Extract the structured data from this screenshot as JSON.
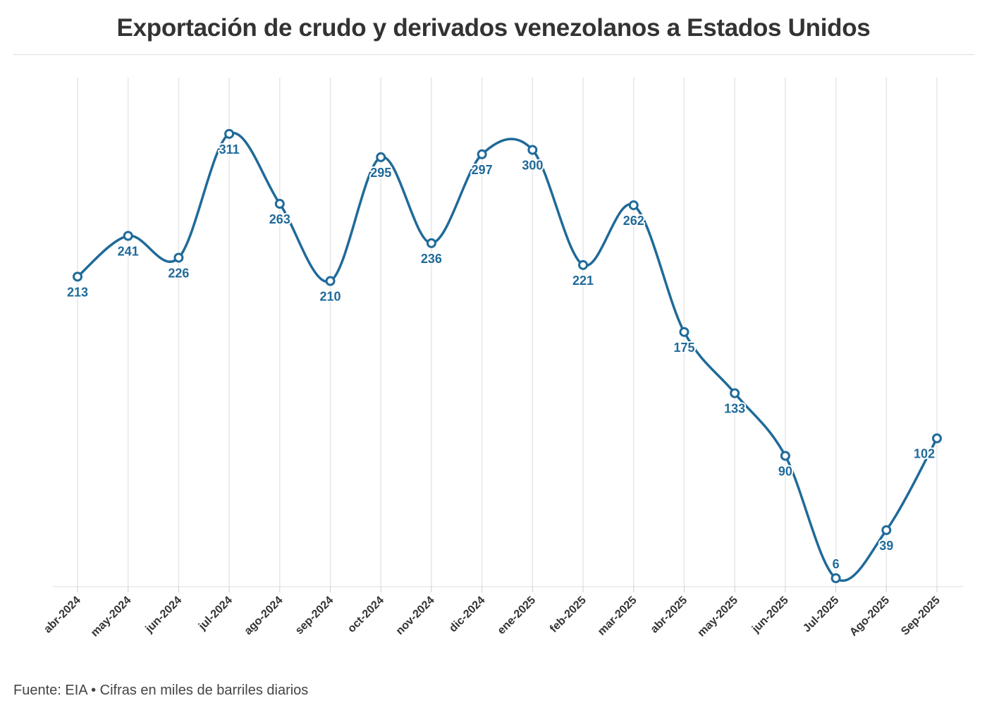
{
  "title": "Exportación de crudo y derivados venezolanos a Estados Unidos",
  "source": "Fuente: EIA • Cifras en miles de barriles diarios",
  "colors": {
    "line": "#1f6a99",
    "grid": "#e6e6e6",
    "axis": "#dddddd"
  },
  "chart_data": {
    "type": "line",
    "title": "Exportación de crudo y derivados venezolanos a Estados Unidos",
    "xlabel": "",
    "ylabel": "",
    "ylim": [
      0,
      311
    ],
    "grid": "vertical",
    "curve": "smooth",
    "categories": [
      "abr-2024",
      "may-2024",
      "jun-2024",
      "jul-2024",
      "ago-2024",
      "sep-2024",
      "oct-2024",
      "nov-2024",
      "dic-2024",
      "ene-2025",
      "feb-2025",
      "mar-2025",
      "abr-2025",
      "may-2025",
      "jun-2025",
      "Jul-2025",
      "Ago-2025",
      "Sep-2025"
    ],
    "values": [
      213,
      241,
      226,
      311,
      263,
      210,
      295,
      236,
      297,
      300,
      221,
      262,
      175,
      133,
      90,
      6,
      39,
      102
    ],
    "data_labels": [
      "213",
      "241",
      "226",
      "311",
      "263",
      "210",
      "295",
      "236",
      "297",
      "300",
      "221",
      "262",
      "175",
      "133",
      "90",
      "6",
      "39",
      "102"
    ]
  }
}
